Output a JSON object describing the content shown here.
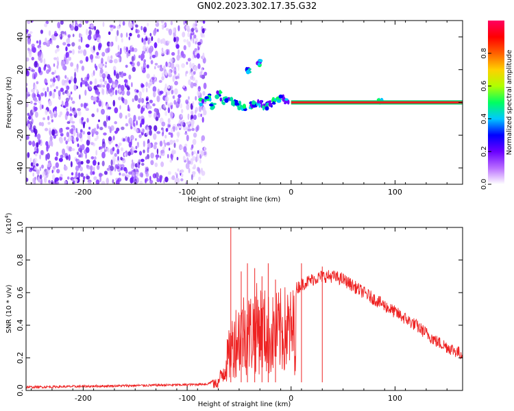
{
  "title": "GN02.2023.302.17.35.G32",
  "chart_data": [
    {
      "type": "heatmap",
      "xlabel": "Height of straight line (km)",
      "ylabel": "Frequency (Hz)",
      "xlim": [
        -255,
        165
      ],
      "ylim": [
        -50,
        50
      ],
      "xticks": [
        -200,
        -100,
        0,
        100
      ],
      "yticks": [
        -40,
        -20,
        0,
        20,
        40
      ],
      "noise_region_x": [
        -255,
        -82
      ],
      "signal_line": {
        "x": [
          0,
          165
        ],
        "y": 0
      },
      "scattered_points": [
        {
          "x": -85,
          "y": 0
        },
        {
          "x": -80,
          "y": 3
        },
        {
          "x": -75,
          "y": -2
        },
        {
          "x": -70,
          "y": 5
        },
        {
          "x": -65,
          "y": 1
        },
        {
          "x": -60,
          "y": 2
        },
        {
          "x": -55,
          "y": -1
        },
        {
          "x": -50,
          "y": -2
        },
        {
          "x": -45,
          "y": -3
        },
        {
          "x": -40,
          "y": -2
        },
        {
          "x": -35,
          "y": -1
        },
        {
          "x": -30,
          "y": -1
        },
        {
          "x": -25,
          "y": -2
        },
        {
          "x": -20,
          "y": -1
        },
        {
          "x": -15,
          "y": 1
        },
        {
          "x": -10,
          "y": 2
        },
        {
          "x": -5,
          "y": 1
        },
        {
          "x": -30,
          "y": 24
        },
        {
          "x": -42,
          "y": 19
        },
        {
          "x": 85,
          "y": 1
        }
      ],
      "colorbar": {
        "label": "Normalized spectral amplitude",
        "range": [
          0,
          1
        ],
        "ticks": [
          "0.0",
          "0.2",
          "0.4",
          "0.6",
          "0.8"
        ],
        "colors": [
          "#ffffff",
          "#b86cff",
          "#6a00ff",
          "#0000ff",
          "#00c8ff",
          "#00ff60",
          "#b0ff00",
          "#ffd000",
          "#ff6000",
          "#ff0000",
          "#ff0060"
        ]
      },
      "line_color": "#ff2020"
    },
    {
      "type": "line",
      "xlabel": "Height of straight line (km)",
      "ylabel": "SNR (10 * v/v)",
      "multiplier": "(x10^4)",
      "xlim": [
        -255,
        165
      ],
      "ylim": [
        0,
        1.0
      ],
      "xticks": [
        -200,
        -100,
        0,
        100
      ],
      "yticks": [
        "0.0",
        "0.2",
        "0.4",
        "0.6",
        "0.8",
        "1.0"
      ],
      "line_color": "#ee2222",
      "series": [
        {
          "envelope_x": [
            -255,
            -200,
            -150,
            -100,
            -80,
            -70,
            -65,
            -60,
            -55,
            -50,
            -45,
            -40,
            -35,
            -30,
            -25,
            -20,
            -15,
            -10,
            -5,
            0,
            10,
            20,
            30,
            40,
            50,
            60,
            80,
            100,
            120,
            140,
            165
          ],
          "envelope_y": [
            0.02,
            0.025,
            0.03,
            0.035,
            0.04,
            0.08,
            0.2,
            0.35,
            0.5,
            0.55,
            0.6,
            0.58,
            0.62,
            0.65,
            0.6,
            0.55,
            0.58,
            0.6,
            0.62,
            0.6,
            0.65,
            0.68,
            0.7,
            0.7,
            0.68,
            0.64,
            0.56,
            0.48,
            0.4,
            0.3,
            0.22
          ],
          "spikes": [
            {
              "x": -58,
              "y": 1.0
            },
            {
              "x": -48,
              "y": 0.73
            },
            {
              "x": -42,
              "y": 0.78
            },
            {
              "x": -35,
              "y": 0.75
            },
            {
              "x": -28,
              "y": 0.7
            },
            {
              "x": -22,
              "y": 0.78
            },
            {
              "x": -15,
              "y": 0.68
            },
            {
              "x": 10,
              "y": 0.78
            },
            {
              "x": 30,
              "y": 0.76
            }
          ]
        }
      ]
    }
  ]
}
